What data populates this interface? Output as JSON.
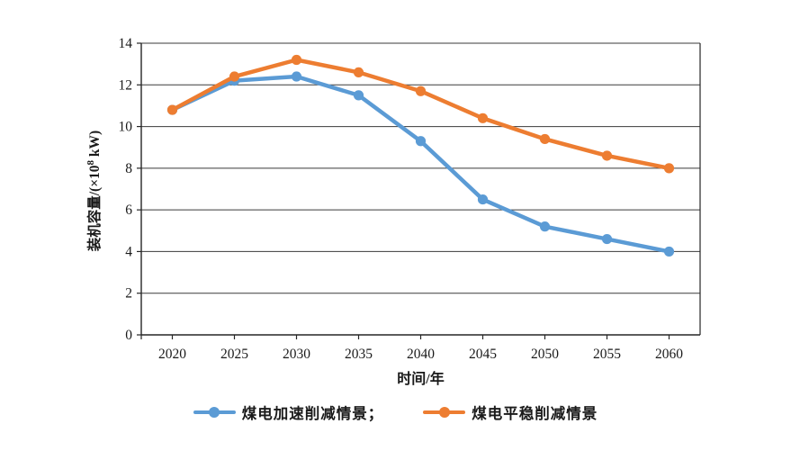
{
  "page": {
    "background": "#ffffff"
  },
  "chart_data": {
    "type": "line",
    "title": "",
    "xlabel": "时间/年",
    "ylabel": "装机容量/(×10⁸ kW)",
    "ylabel_parts": {
      "pre": "装机容量/(×10",
      "sup": "8",
      "post": " kW)"
    },
    "categories": [
      "2020",
      "2025",
      "2030",
      "2035",
      "2040",
      "2045",
      "2050",
      "2055",
      "2060"
    ],
    "y_ticks": [
      0,
      2,
      4,
      6,
      8,
      10,
      12,
      14
    ],
    "ylim": [
      0,
      14
    ],
    "grid": "horizontal",
    "legend_position": "bottom",
    "axis_color": "#262626",
    "grid_color": "#3a3a3a",
    "text_color": "#1a1a1a",
    "series": [
      {
        "name": "煤电加速削减情景",
        "legend_label": "煤电加速削减情景；",
        "color": "#5B9BD5",
        "values": [
          10.8,
          12.2,
          12.4,
          11.5,
          9.3,
          6.5,
          5.2,
          4.6,
          4.0
        ]
      },
      {
        "name": "煤电平稳削减情景",
        "legend_label": "煤电平稳削减情景",
        "color": "#ED7D31",
        "values": [
          10.8,
          12.4,
          13.2,
          12.6,
          11.7,
          10.4,
          9.4,
          8.6,
          8.0
        ]
      }
    ]
  }
}
